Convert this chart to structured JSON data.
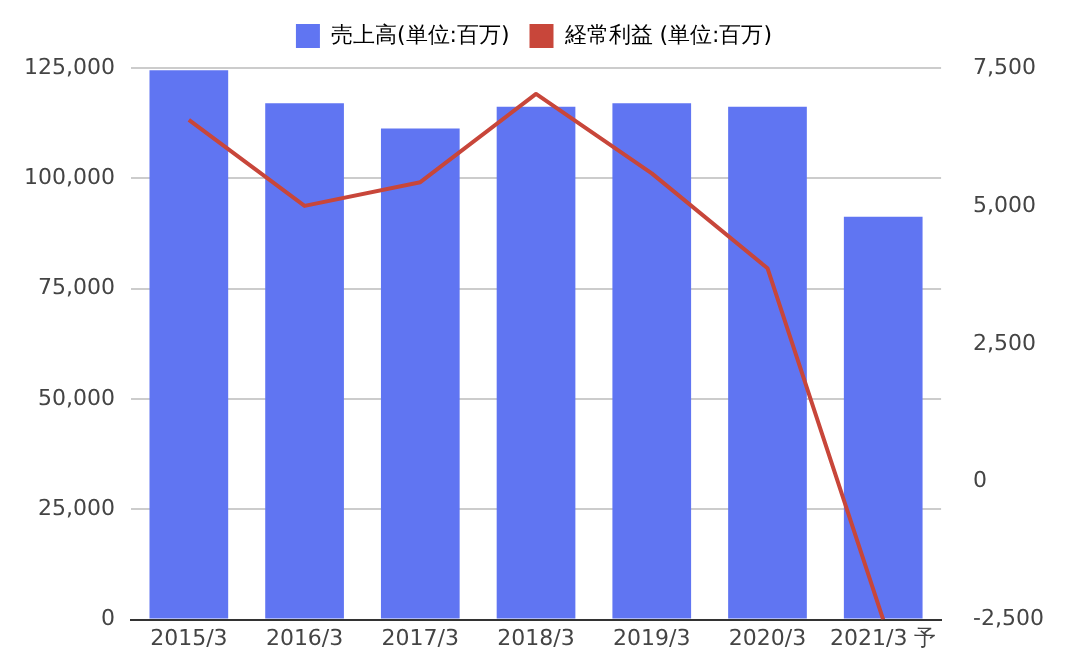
{
  "chart_data": {
    "type": "bar",
    "categories": [
      "2015/3",
      "2016/3",
      "2017/3",
      "2018/3",
      "2019/3",
      "2020/3",
      "2021/3 予"
    ],
    "series": [
      {
        "name": "売上高(単位:百万)",
        "color": "#6075f2",
        "values": [
          124500,
          117000,
          111300,
          116200,
          117000,
          116200,
          91300
        ]
      },
      {
        "name": "経常利益 (単位:百万)",
        "type": "line",
        "axis": "y2",
        "color": "#c8463a",
        "values": [
          6560,
          5000,
          5430,
          7030,
          5590,
          3870,
          -2500
        ]
      }
    ],
    "ylim": [
      0,
      125000
    ],
    "yticks": [
      {
        "value": 0,
        "label": "0"
      },
      {
        "value": 25000,
        "label": "25,000"
      },
      {
        "value": 50000,
        "label": "50,000"
      },
      {
        "value": 75000,
        "label": "75,000"
      },
      {
        "value": 100000,
        "label": "100,000"
      },
      {
        "value": 125000,
        "label": "125,000"
      }
    ],
    "y2lim": [
      -2500,
      7500
    ],
    "y2ticks": [
      {
        "value": -2500,
        "label": "-2,500"
      },
      {
        "value": 0,
        "label": "0"
      },
      {
        "value": 2500,
        "label": "2,500"
      },
      {
        "value": 5000,
        "label": "5,000"
      },
      {
        "value": 7500,
        "label": "7,500"
      }
    ],
    "grid": "y",
    "legend": "top",
    "marker": "none"
  }
}
